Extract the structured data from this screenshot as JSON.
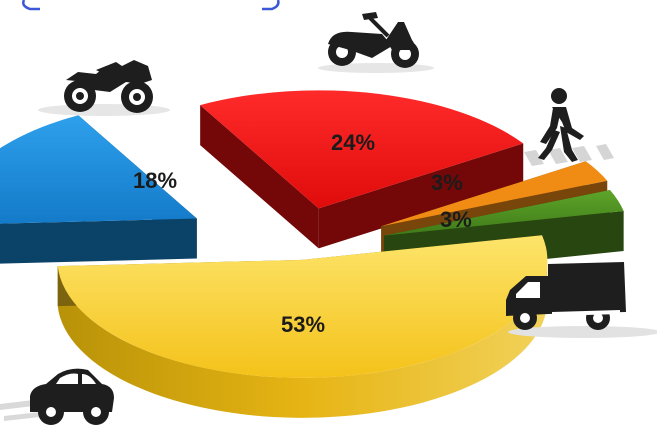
{
  "chart_data": {
    "type": "pie",
    "style": "exploded 3D pie with transport pictograms",
    "legend": "none",
    "slices": [
      {
        "value": 53,
        "label": "53%",
        "color": "#f6c51e",
        "icon": "car-icon"
      },
      {
        "value": 18,
        "label": "18%",
        "color": "#1683cf",
        "icon": "motorcycle-icon"
      },
      {
        "value": 24,
        "label": "24%",
        "color": "#e81010",
        "icon": "scooter-icon"
      },
      {
        "value": 3,
        "label": "3%",
        "color": "#f08c14",
        "icon": "pedestrian-icon"
      },
      {
        "value": 3,
        "label": "3%",
        "color": "#4f8c1e",
        "icon": "truck-icon"
      }
    ]
  }
}
